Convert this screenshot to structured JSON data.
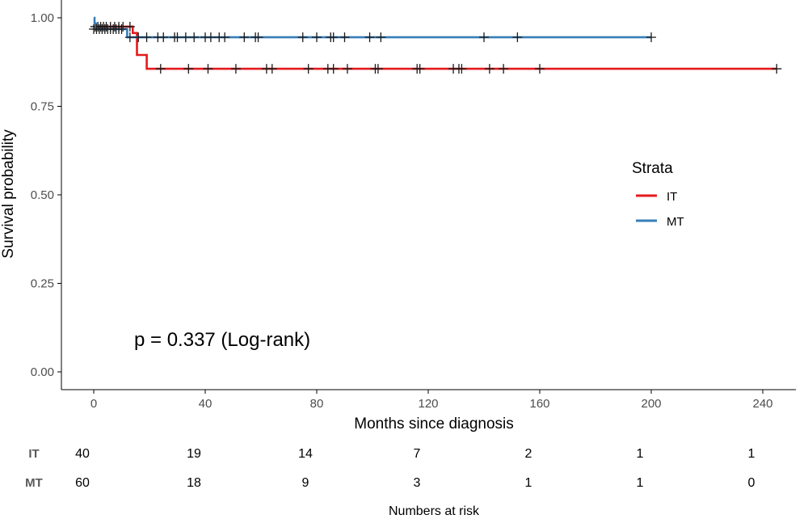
{
  "chart_data": {
    "type": "line",
    "subtype": "kaplan-meier",
    "xlabel": "Months since diagnosis",
    "ylabel": "Survival probability",
    "xlim": [
      0,
      245
    ],
    "ylim": [
      0,
      1
    ],
    "x_ticks": [
      0,
      40,
      80,
      120,
      160,
      200,
      240
    ],
    "y_ticks": [
      0.0,
      0.25,
      0.5,
      0.75,
      1.0
    ],
    "y_tick_labels": [
      "0.00",
      "0.25",
      "0.50",
      "0.75",
      "1.00"
    ],
    "grid": false,
    "legend": {
      "title": "Strata",
      "position": "right",
      "entries": [
        "IT",
        "MT"
      ]
    },
    "annotation": "p = 0.337 (Log-rank)",
    "series": [
      {
        "name": "IT",
        "color": "#e41a1c",
        "steps": [
          [
            0,
            0.975
          ],
          [
            14,
            0.975
          ],
          [
            14,
            0.957
          ],
          [
            15.5,
            0.957
          ],
          [
            15.5,
            0.895
          ],
          [
            19,
            0.895
          ],
          [
            19,
            0.856
          ],
          [
            245,
            0.856
          ]
        ],
        "censors": [
          [
            0.5,
            0.975
          ],
          [
            1.5,
            0.975
          ],
          [
            2.5,
            0.975
          ],
          [
            3.5,
            0.975
          ],
          [
            4.5,
            0.975
          ],
          [
            6,
            0.975
          ],
          [
            7.5,
            0.975
          ],
          [
            9,
            0.975
          ],
          [
            10.5,
            0.975
          ],
          [
            13,
            0.975
          ],
          [
            24,
            0.856
          ],
          [
            34,
            0.856
          ],
          [
            41,
            0.856
          ],
          [
            51,
            0.856
          ],
          [
            62,
            0.856
          ],
          [
            64,
            0.856
          ],
          [
            77,
            0.856
          ],
          [
            84,
            0.856
          ],
          [
            86,
            0.856
          ],
          [
            91,
            0.856
          ],
          [
            101,
            0.856
          ],
          [
            102,
            0.856
          ],
          [
            116,
            0.856
          ],
          [
            117,
            0.856
          ],
          [
            129,
            0.856
          ],
          [
            131,
            0.856
          ],
          [
            132,
            0.856
          ],
          [
            142,
            0.856
          ],
          [
            147,
            0.856
          ],
          [
            160,
            0.856
          ],
          [
            245,
            0.856
          ]
        ]
      },
      {
        "name": "MT",
        "color": "#377eb8",
        "steps": [
          [
            0,
            1.0
          ],
          [
            0.3,
            1.0
          ],
          [
            0.3,
            0.984
          ],
          [
            0.8,
            0.984
          ],
          [
            0.8,
            0.968
          ],
          [
            12,
            0.968
          ],
          [
            12,
            0.945
          ],
          [
            200,
            0.945
          ]
        ],
        "censors": [
          [
            0,
            0.968
          ],
          [
            1,
            0.968
          ],
          [
            2,
            0.968
          ],
          [
            3,
            0.968
          ],
          [
            4,
            0.968
          ],
          [
            5,
            0.968
          ],
          [
            6,
            0.968
          ],
          [
            7,
            0.968
          ],
          [
            8,
            0.968
          ],
          [
            9,
            0.968
          ],
          [
            10,
            0.968
          ],
          [
            13,
            0.945
          ],
          [
            16,
            0.945
          ],
          [
            19,
            0.945
          ],
          [
            23,
            0.945
          ],
          [
            25,
            0.945
          ],
          [
            29,
            0.945
          ],
          [
            30,
            0.945
          ],
          [
            33,
            0.945
          ],
          [
            36,
            0.945
          ],
          [
            40,
            0.945
          ],
          [
            42,
            0.945
          ],
          [
            45,
            0.945
          ],
          [
            47,
            0.945
          ],
          [
            54,
            0.945
          ],
          [
            58,
            0.945
          ],
          [
            59,
            0.945
          ],
          [
            75,
            0.945
          ],
          [
            80,
            0.945
          ],
          [
            85,
            0.945
          ],
          [
            86,
            0.945
          ],
          [
            90,
            0.945
          ],
          [
            99,
            0.945
          ],
          [
            103,
            0.945
          ],
          [
            140,
            0.945
          ],
          [
            152,
            0.945
          ],
          [
            200,
            0.945
          ]
        ]
      }
    ],
    "risk_table": {
      "title": "Numbers at risk",
      "times": [
        0,
        40,
        80,
        120,
        160,
        200,
        240
      ],
      "rows": [
        {
          "strata": "IT",
          "values": [
            "40",
            "19",
            "14",
            "7",
            "2",
            "1",
            "1"
          ]
        },
        {
          "strata": "MT",
          "values": [
            "60",
            "18",
            "9",
            "3",
            "1",
            "1",
            "0"
          ]
        }
      ]
    }
  }
}
